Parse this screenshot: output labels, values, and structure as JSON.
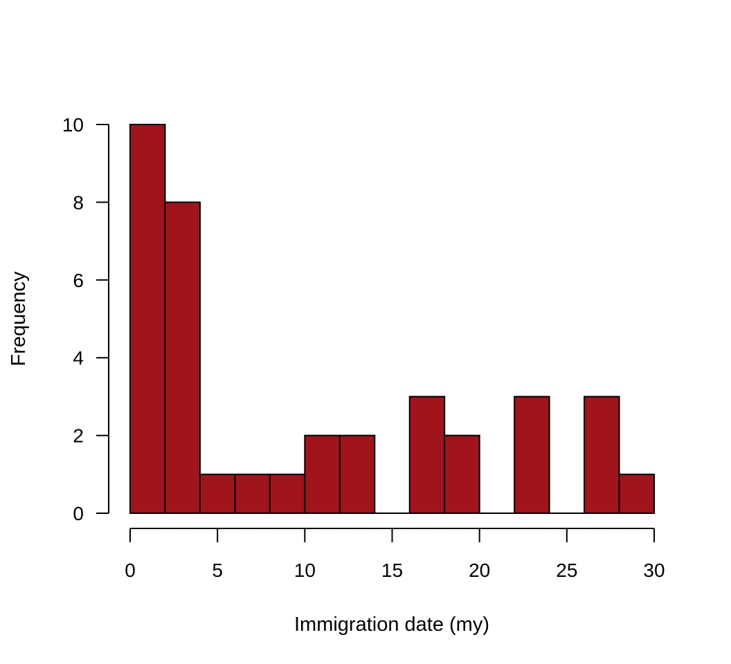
{
  "chart_data": {
    "type": "bar",
    "title": "",
    "xlabel": "Immigration date (my)",
    "ylabel": "Frequency",
    "bin_edges": [
      0,
      2,
      4,
      6,
      8,
      10,
      12,
      14,
      16,
      18,
      20,
      22,
      24,
      26,
      28,
      30
    ],
    "values": [
      10,
      8,
      1,
      1,
      1,
      2,
      2,
      0,
      3,
      2,
      0,
      3,
      0,
      3,
      1
    ],
    "xlim": [
      0,
      30
    ],
    "ylim": [
      0,
      10
    ],
    "x_ticks": [
      0,
      5,
      10,
      15,
      20,
      25,
      30
    ],
    "y_ticks": [
      0,
      2,
      4,
      6,
      8,
      10
    ],
    "grid": false,
    "bar_color": "#A0141C",
    "bar_edge_color": "#000000"
  }
}
